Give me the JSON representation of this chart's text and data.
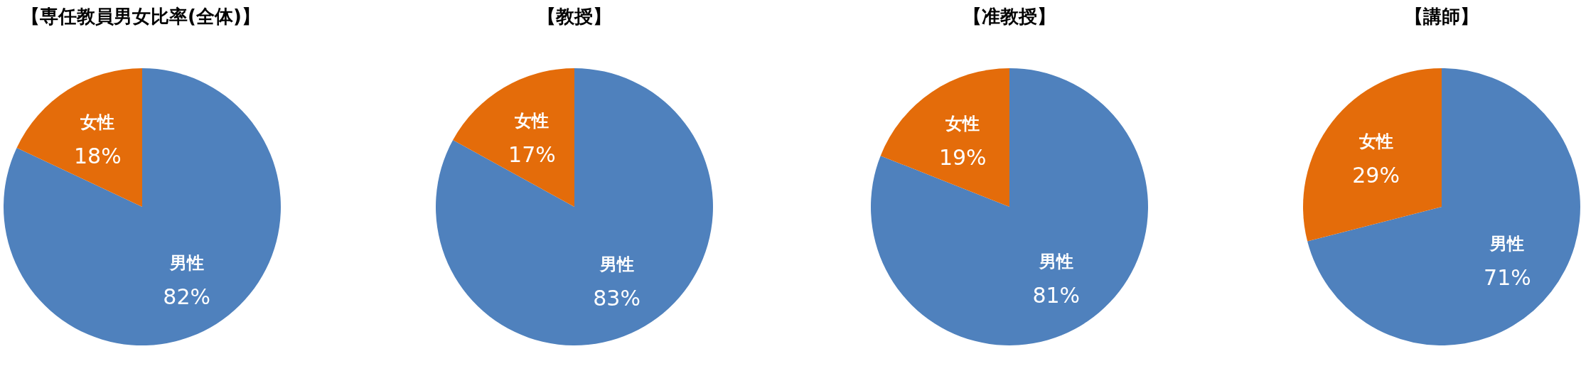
{
  "chart_data": [
    {
      "type": "pie",
      "title": "【専任教員男女比率(全体)】",
      "categories": [
        "男性",
        "女性"
      ],
      "values": [
        82,
        18
      ],
      "value_labels": [
        "82%",
        "18%"
      ],
      "colors": [
        "#4f81bd",
        "#e46c0a"
      ]
    },
    {
      "type": "pie",
      "title": "【教授】",
      "categories": [
        "男性",
        "女性"
      ],
      "values": [
        83,
        17
      ],
      "value_labels": [
        "83%",
        "17%"
      ],
      "colors": [
        "#4f81bd",
        "#e46c0a"
      ]
    },
    {
      "type": "pie",
      "title": "【准教授】",
      "categories": [
        "男性",
        "女性"
      ],
      "values": [
        81,
        19
      ],
      "value_labels": [
        "81%",
        "19%"
      ],
      "colors": [
        "#4f81bd",
        "#e46c0a"
      ]
    },
    {
      "type": "pie",
      "title": "【講師】",
      "categories": [
        "男性",
        "女性"
      ],
      "values": [
        71,
        29
      ],
      "value_labels": [
        "71%",
        "29%"
      ],
      "colors": [
        "#4f81bd",
        "#e46c0a"
      ]
    }
  ]
}
